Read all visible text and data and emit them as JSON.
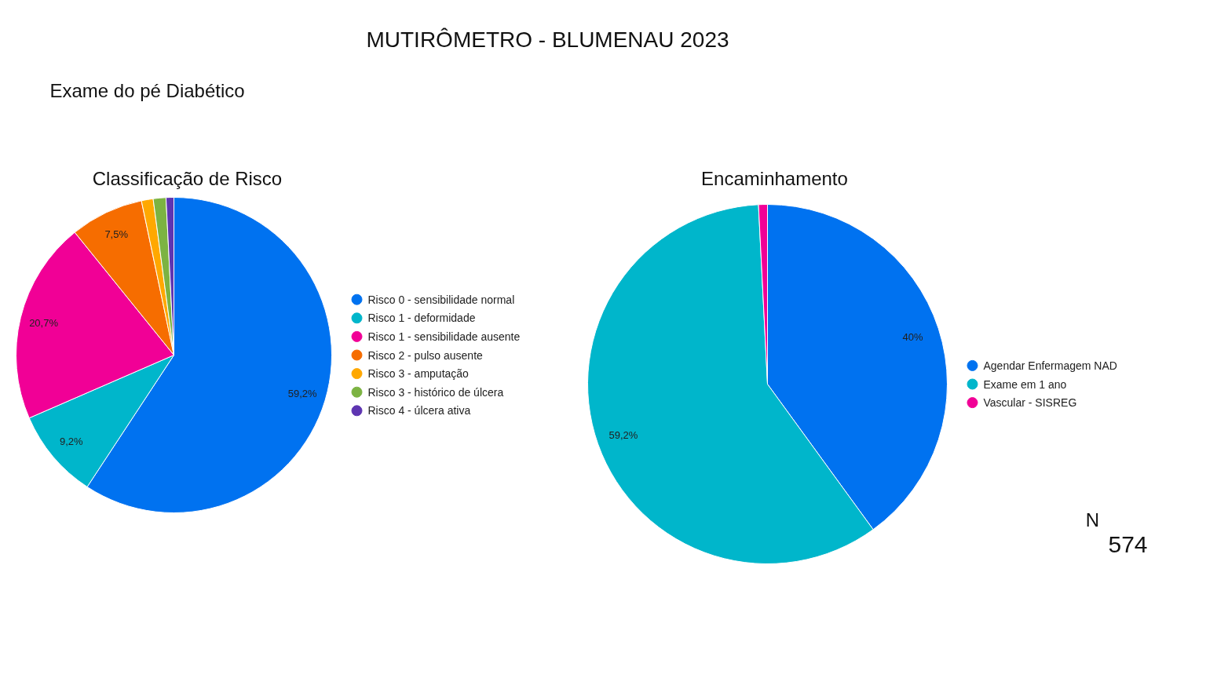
{
  "chart_data": [
    {
      "type": "pie",
      "title": "Classificação de Risco",
      "categories": [
        "Risco 0 - sensibilidade normal",
        "Risco 1 - deformidade",
        "Risco 1 - sensibilidade ausente",
        "Risco 2 - pulso ausente",
        "Risco 3 - amputação",
        "Risco 3 - histórico de úlcera",
        "Risco 4 - úlcera ativa"
      ],
      "values": [
        59.2,
        9.2,
        20.7,
        7.5,
        1.2,
        1.3,
        0.8
      ],
      "colors": [
        "#0072f0",
        "#00b6cb",
        "#f10096",
        "#f66d00",
        "#ffa800",
        "#7cb342",
        "#5e35b1"
      ],
      "value_labels": [
        "59,2%",
        "9,2%",
        "20,7%",
        "7,5%",
        null,
        null,
        null
      ],
      "legend": "right",
      "annotations": [
        "MUTIRÔMETRO - BLUMENAU 2023",
        "Exame do pé Diabético"
      ]
    },
    {
      "type": "pie",
      "title": "Encaminhamento",
      "categories": [
        "Agendar Enfermagem NAD",
        "Exame em 1 ano",
        "Vascular - SISREG"
      ],
      "values": [
        40,
        59.2,
        0.8
      ],
      "colors": [
        "#0072f0",
        "#00b6cb",
        "#f10096"
      ],
      "value_labels": [
        "40%",
        "59,2%",
        null
      ],
      "legend": "right",
      "annotations": [
        "N",
        "574"
      ]
    }
  ]
}
